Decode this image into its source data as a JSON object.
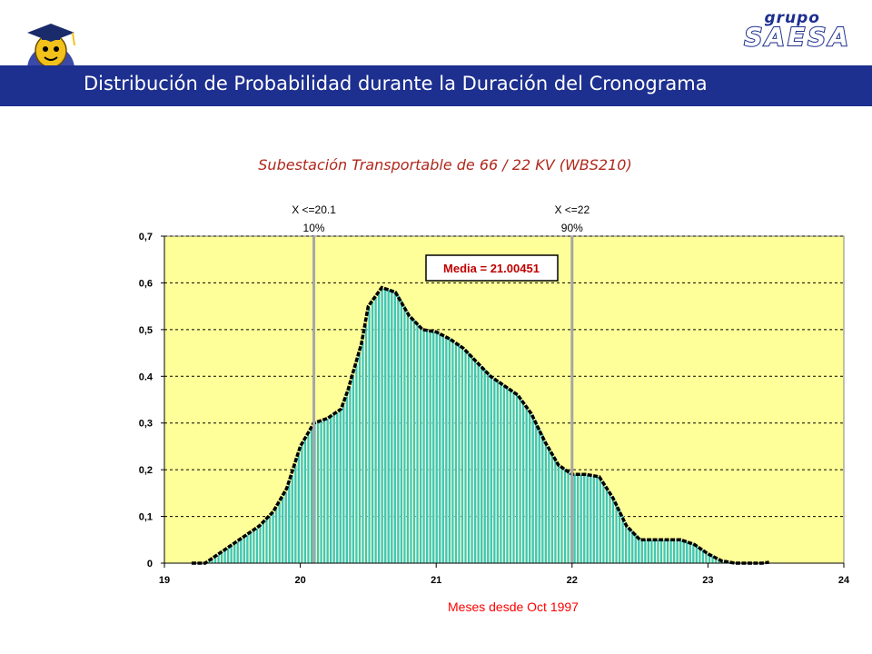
{
  "header": {
    "title": "Distribución de Probabilidad durante la Duración del Cronograma",
    "brand_top": "grupo",
    "brand_main": "SAESA",
    "accent_color": "#1d2f8f"
  },
  "chart_data": {
    "type": "area",
    "title": "Subestación Transportable de 66 / 22 KV (WBS210)",
    "xlabel": "Meses desde Oct 1997",
    "ylabel": "",
    "xlim": [
      19,
      24
    ],
    "ylim": [
      0,
      0.7
    ],
    "x_ticks": [
      "19",
      "20",
      "21",
      "22",
      "23",
      "24"
    ],
    "y_ticks": [
      "0",
      "0,1",
      "0,2",
      "0,3",
      "0.4",
      "0,5",
      "0,6",
      "0,7"
    ],
    "grid": "horizontal dashed",
    "plot_background": "#ffff99",
    "fill_color": "#3fc6b4",
    "line_color": "#000000",
    "series": [
      {
        "x": [
          19.2,
          19.3,
          19.4,
          19.5,
          19.6,
          19.7,
          19.8,
          19.9,
          20.0,
          20.1,
          20.2,
          20.3,
          20.35,
          20.45,
          20.5,
          20.6,
          20.7,
          20.8,
          20.9,
          21.0,
          21.1,
          21.2,
          21.3,
          21.4,
          21.5,
          21.6,
          21.7,
          21.8,
          21.9,
          22.0,
          22.1,
          22.2,
          22.3,
          22.4,
          22.5,
          22.6,
          22.7,
          22.8,
          22.9,
          23.0,
          23.1,
          23.2,
          23.3,
          23.4,
          23.45
        ],
        "y": [
          0.0,
          0.0,
          0.02,
          0.04,
          0.06,
          0.08,
          0.11,
          0.16,
          0.25,
          0.3,
          0.31,
          0.33,
          0.37,
          0.47,
          0.55,
          0.59,
          0.58,
          0.53,
          0.5,
          0.495,
          0.48,
          0.46,
          0.43,
          0.4,
          0.38,
          0.36,
          0.32,
          0.26,
          0.21,
          0.19,
          0.19,
          0.185,
          0.14,
          0.08,
          0.05,
          0.05,
          0.05,
          0.05,
          0.04,
          0.02,
          0.005,
          0.0,
          0.0,
          0.0,
          0.002
        ]
      }
    ],
    "annotations": [
      {
        "x": 20.1,
        "label": "X <=20.1",
        "sublabel": "10%"
      },
      {
        "x": 22.0,
        "label": "X <=22",
        "sublabel": "90%"
      }
    ],
    "mean_label": "Media = 21.00451"
  }
}
